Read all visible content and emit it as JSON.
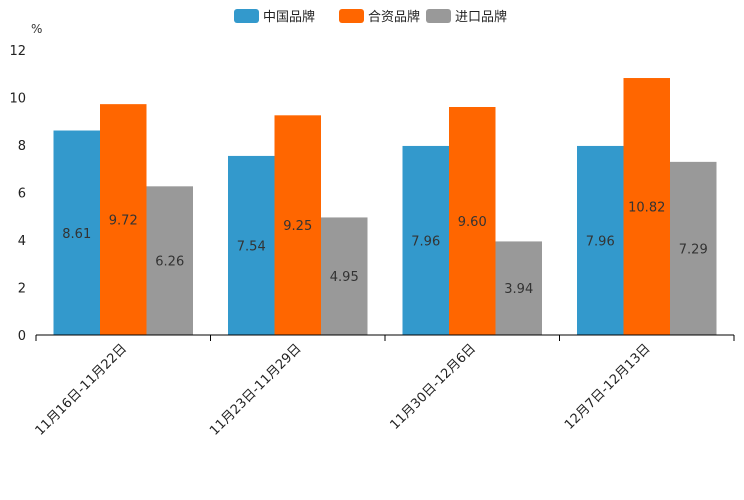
{
  "chart_data": {
    "type": "bar",
    "title": "",
    "ylabel": "%",
    "xlabel": "",
    "ylim": [
      0,
      12
    ],
    "yticks": [
      0,
      2,
      4,
      6,
      8,
      10,
      12
    ],
    "grid": false,
    "legend_position": "top-center",
    "categories": [
      "11月16日-11月22日",
      "11月23日-11月29日",
      "11月30日-12月6日",
      "12月7日-12月13日"
    ],
    "series": [
      {
        "name": "中国品牌",
        "color": "#3399cc",
        "values": [
          8.61,
          7.54,
          7.96,
          7.96
        ],
        "labels": [
          "8.61",
          "7.54",
          "7.96",
          "7.96"
        ]
      },
      {
        "name": "合资品牌",
        "color": "#ff6600",
        "values": [
          9.72,
          9.25,
          9.6,
          10.82
        ],
        "labels": [
          "9.72",
          "9.25",
          "9.60",
          "10.82"
        ]
      },
      {
        "name": "进口品牌",
        "color": "#999999",
        "values": [
          6.26,
          4.95,
          3.94,
          7.29
        ],
        "labels": [
          "6.26",
          "4.95",
          "3.94",
          "7.29"
        ]
      }
    ]
  }
}
